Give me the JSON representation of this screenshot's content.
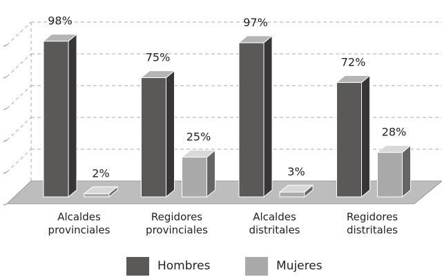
{
  "chart_data": {
    "type": "bar3d",
    "categories": [
      "Alcaldes provinciales",
      "Regidores provinciales",
      "Alcaldes distritales",
      "Regidores distritales"
    ],
    "series": [
      {
        "name": "Hombres",
        "color": "#5b5858",
        "values": [
          98,
          75,
          97,
          72
        ],
        "value_labels": [
          "98%",
          "75%",
          "97%",
          "72%"
        ]
      },
      {
        "name": "Mujeres",
        "color": "#a9a9a9",
        "values": [
          2,
          25,
          3,
          28
        ],
        "value_labels": [
          "2%",
          "25%",
          "3%",
          "28%"
        ]
      }
    ],
    "ylim": [
      0,
      100
    ],
    "yticks": [
      0,
      20,
      40,
      60,
      80,
      100
    ],
    "grid": true
  }
}
